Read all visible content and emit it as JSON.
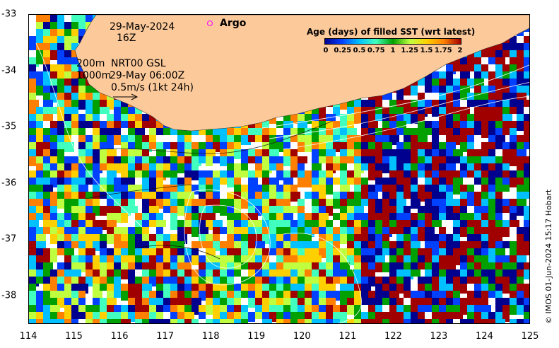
{
  "date": "29-May-2024",
  "time": "16Z",
  "depth_contours": "200m\n1000m",
  "product": "NRT00 GSL",
  "product_time": "29-May 06:00Z",
  "velocity_scale": "0.5m/s (1kt 24h)",
  "argo_label": "Argo",
  "legend": {
    "title": "Age (days) of filled SST (wrt latest)",
    "ticks": [
      "0",
      "0.25",
      "0.5",
      "0.75",
      "1",
      "1.25",
      "1.5",
      "1.75",
      "2"
    ]
  },
  "axes": {
    "x_ticks": [
      "114",
      "115",
      "116",
      "117",
      "118",
      "119",
      "120",
      "121",
      "122",
      "123",
      "124",
      "125"
    ],
    "y_ticks": [
      "-33",
      "-34",
      "-35",
      "-36",
      "-37",
      "-38"
    ]
  },
  "credit": "© IMOS 01-Jun-2024 15:17 Hobart",
  "colors": {
    "land": "#fcc99a",
    "age_palette": [
      "#00008f",
      "#0040ff",
      "#00c0ff",
      "#40ffbf",
      "#00a000",
      "#bfff40",
      "#ffd000",
      "#ff8000",
      "#a00000"
    ]
  }
}
